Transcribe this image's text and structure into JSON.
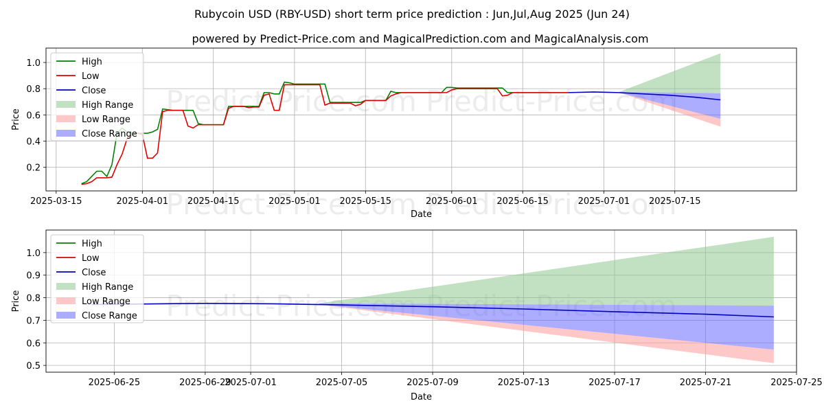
{
  "title": "Rubycoin USD (RBY-USD) short term price prediction : Jun,Jul,Aug 2025 (Jun 24)",
  "subtitle": "powered by Predict-Price.com and MagicalPrediction.com and MagicalAnalysis.com",
  "watermark": "Predict-Price.com",
  "colors": {
    "high": "#008000",
    "low": "#e00000",
    "close": "#0000c0",
    "high_range": "#8fc98f",
    "low_range": "#ff9a9a",
    "close_range": "#6a6aff"
  },
  "legend": {
    "placement": "upper-left",
    "items": [
      {
        "label": "High",
        "kind": "line",
        "color": "#008000"
      },
      {
        "label": "Low",
        "kind": "line",
        "color": "#e00000"
      },
      {
        "label": "Close",
        "kind": "line",
        "color": "#0000c0"
      },
      {
        "label": "High Range",
        "kind": "patch",
        "color": "#8fc98f"
      },
      {
        "label": "Low Range",
        "kind": "patch",
        "color": "#ff9a9a"
      },
      {
        "label": "Close Range",
        "kind": "patch",
        "color": "#6a6aff"
      }
    ]
  },
  "chart_data": [
    {
      "type": "line",
      "xlabel": "Date",
      "ylabel": "Price",
      "grid": true,
      "xlim": [
        "2025-03-13",
        "2025-08-08"
      ],
      "ylim": [
        0.02,
        1.11
      ],
      "yticks": [
        0.2,
        0.4,
        0.6,
        0.8,
        1.0
      ],
      "xticks": [
        "2025-03-15",
        "2025-04-01",
        "2025-04-15",
        "2025-05-01",
        "2025-05-15",
        "2025-06-01",
        "2025-06-15",
        "2025-07-01",
        "2025-07-15"
      ],
      "high": [
        [
          "2025-03-20",
          0.075
        ],
        [
          "2025-03-21",
          0.09
        ],
        [
          "2025-03-22",
          0.13
        ],
        [
          "2025-03-23",
          0.17
        ],
        [
          "2025-03-24",
          0.17
        ],
        [
          "2025-03-25",
          0.13
        ],
        [
          "2025-03-26",
          0.22
        ],
        [
          "2025-03-27",
          0.46
        ],
        [
          "2025-03-28",
          0.5
        ],
        [
          "2025-03-29",
          0.47
        ],
        [
          "2025-03-30",
          0.46
        ],
        [
          "2025-03-31",
          0.46
        ],
        [
          "2025-04-01",
          0.46
        ],
        [
          "2025-04-02",
          0.46
        ],
        [
          "2025-04-03",
          0.47
        ],
        [
          "2025-04-04",
          0.49
        ],
        [
          "2025-04-05",
          0.645
        ],
        [
          "2025-04-06",
          0.64
        ],
        [
          "2025-04-07",
          0.635
        ],
        [
          "2025-04-08",
          0.635
        ],
        [
          "2025-04-09",
          0.635
        ],
        [
          "2025-04-10",
          0.635
        ],
        [
          "2025-04-11",
          0.635
        ],
        [
          "2025-04-12",
          0.535
        ],
        [
          "2025-04-13",
          0.525
        ],
        [
          "2025-04-14",
          0.525
        ],
        [
          "2025-04-15",
          0.525
        ],
        [
          "2025-04-16",
          0.525
        ],
        [
          "2025-04-17",
          0.525
        ],
        [
          "2025-04-18",
          0.665
        ],
        [
          "2025-04-19",
          0.665
        ],
        [
          "2025-04-20",
          0.665
        ],
        [
          "2025-04-21",
          0.665
        ],
        [
          "2025-04-22",
          0.665
        ],
        [
          "2025-04-23",
          0.665
        ],
        [
          "2025-04-24",
          0.665
        ],
        [
          "2025-04-25",
          0.77
        ],
        [
          "2025-04-26",
          0.77
        ],
        [
          "2025-04-27",
          0.76
        ],
        [
          "2025-04-28",
          0.76
        ],
        [
          "2025-04-29",
          0.85
        ],
        [
          "2025-04-30",
          0.845
        ],
        [
          "2025-05-01",
          0.835
        ],
        [
          "2025-05-02",
          0.835
        ],
        [
          "2025-05-03",
          0.835
        ],
        [
          "2025-05-04",
          0.835
        ],
        [
          "2025-05-05",
          0.835
        ],
        [
          "2025-05-06",
          0.835
        ],
        [
          "2025-05-07",
          0.835
        ],
        [
          "2025-05-08",
          0.695
        ],
        [
          "2025-05-09",
          0.695
        ],
        [
          "2025-05-10",
          0.695
        ],
        [
          "2025-05-11",
          0.695
        ],
        [
          "2025-05-12",
          0.695
        ],
        [
          "2025-05-13",
          0.695
        ],
        [
          "2025-05-14",
          0.695
        ],
        [
          "2025-05-15",
          0.71
        ],
        [
          "2025-05-16",
          0.71
        ],
        [
          "2025-05-17",
          0.71
        ],
        [
          "2025-05-18",
          0.71
        ],
        [
          "2025-05-19",
          0.71
        ],
        [
          "2025-05-20",
          0.78
        ],
        [
          "2025-05-21",
          0.77
        ],
        [
          "2025-05-22",
          0.77
        ],
        [
          "2025-05-23",
          0.77
        ],
        [
          "2025-05-24",
          0.77
        ],
        [
          "2025-05-25",
          0.77
        ],
        [
          "2025-05-30",
          0.77
        ],
        [
          "2025-05-31",
          0.81
        ],
        [
          "2025-06-01",
          0.81
        ],
        [
          "2025-06-02",
          0.805
        ],
        [
          "2025-06-10",
          0.805
        ],
        [
          "2025-06-11",
          0.805
        ],
        [
          "2025-06-12",
          0.77
        ],
        [
          "2025-06-13",
          0.77
        ],
        [
          "2025-06-24",
          0.77
        ]
      ],
      "low": [
        [
          "2025-03-20",
          0.07
        ],
        [
          "2025-03-21",
          0.075
        ],
        [
          "2025-03-22",
          0.09
        ],
        [
          "2025-03-23",
          0.12
        ],
        [
          "2025-03-24",
          0.12
        ],
        [
          "2025-03-25",
          0.12
        ],
        [
          "2025-03-26",
          0.125
        ],
        [
          "2025-03-27",
          0.22
        ],
        [
          "2025-03-28",
          0.3
        ],
        [
          "2025-03-29",
          0.42
        ],
        [
          "2025-03-30",
          0.45
        ],
        [
          "2025-03-31",
          0.46
        ],
        [
          "2025-04-01",
          0.45
        ],
        [
          "2025-04-02",
          0.27
        ],
        [
          "2025-04-03",
          0.27
        ],
        [
          "2025-04-04",
          0.31
        ],
        [
          "2025-04-05",
          0.625
        ],
        [
          "2025-04-06",
          0.635
        ],
        [
          "2025-04-07",
          0.635
        ],
        [
          "2025-04-08",
          0.635
        ],
        [
          "2025-04-09",
          0.635
        ],
        [
          "2025-04-10",
          0.515
        ],
        [
          "2025-04-11",
          0.5
        ],
        [
          "2025-04-12",
          0.525
        ],
        [
          "2025-04-13",
          0.525
        ],
        [
          "2025-04-14",
          0.525
        ],
        [
          "2025-04-15",
          0.525
        ],
        [
          "2025-04-16",
          0.525
        ],
        [
          "2025-04-17",
          0.525
        ],
        [
          "2025-04-18",
          0.65
        ],
        [
          "2025-04-19",
          0.665
        ],
        [
          "2025-04-20",
          0.665
        ],
        [
          "2025-04-21",
          0.665
        ],
        [
          "2025-04-22",
          0.655
        ],
        [
          "2025-04-23",
          0.66
        ],
        [
          "2025-04-24",
          0.66
        ],
        [
          "2025-04-25",
          0.75
        ],
        [
          "2025-04-26",
          0.76
        ],
        [
          "2025-04-27",
          0.635
        ],
        [
          "2025-04-28",
          0.635
        ],
        [
          "2025-04-29",
          0.83
        ],
        [
          "2025-04-30",
          0.83
        ],
        [
          "2025-05-01",
          0.83
        ],
        [
          "2025-05-02",
          0.83
        ],
        [
          "2025-05-03",
          0.83
        ],
        [
          "2025-05-04",
          0.83
        ],
        [
          "2025-05-05",
          0.83
        ],
        [
          "2025-05-06",
          0.83
        ],
        [
          "2025-05-07",
          0.675
        ],
        [
          "2025-05-08",
          0.69
        ],
        [
          "2025-05-09",
          0.69
        ],
        [
          "2025-05-10",
          0.69
        ],
        [
          "2025-05-11",
          0.69
        ],
        [
          "2025-05-12",
          0.69
        ],
        [
          "2025-05-13",
          0.67
        ],
        [
          "2025-05-14",
          0.68
        ],
        [
          "2025-05-15",
          0.71
        ],
        [
          "2025-05-16",
          0.71
        ],
        [
          "2025-05-17",
          0.71
        ],
        [
          "2025-05-18",
          0.71
        ],
        [
          "2025-05-19",
          0.71
        ],
        [
          "2025-05-20",
          0.745
        ],
        [
          "2025-05-21",
          0.76
        ],
        [
          "2025-05-22",
          0.77
        ],
        [
          "2025-05-23",
          0.77
        ],
        [
          "2025-05-30",
          0.77
        ],
        [
          "2025-05-31",
          0.77
        ],
        [
          "2025-06-01",
          0.79
        ],
        [
          "2025-06-02",
          0.8
        ],
        [
          "2025-06-10",
          0.8
        ],
        [
          "2025-06-11",
          0.745
        ],
        [
          "2025-06-12",
          0.75
        ],
        [
          "2025-06-13",
          0.77
        ],
        [
          "2025-06-24",
          0.77
        ]
      ],
      "close": [
        [
          "2025-06-24",
          0.77
        ],
        [
          "2025-06-29",
          0.775
        ],
        [
          "2025-07-04",
          0.77
        ],
        [
          "2025-07-09",
          0.76
        ],
        [
          "2025-07-14",
          0.75
        ],
        [
          "2025-07-19",
          0.735
        ],
        [
          "2025-07-24",
          0.715
        ]
      ],
      "high_range": [
        [
          "2025-07-04",
          0.775,
          0.775
        ],
        [
          "2025-07-24",
          0.765,
          1.07
        ]
      ],
      "low_range": [
        [
          "2025-07-04",
          0.77,
          0.77
        ],
        [
          "2025-07-24",
          0.51,
          0.57
        ]
      ],
      "close_range": [
        [
          "2025-07-04",
          0.77,
          0.775
        ],
        [
          "2025-07-24",
          0.57,
          0.765
        ]
      ]
    },
    {
      "type": "line",
      "xlabel": "Date",
      "ylabel": "Price",
      "grid": true,
      "xlim": [
        "2025-06-22",
        "2025-07-25"
      ],
      "ylim": [
        0.47,
        1.1
      ],
      "yticks": [
        0.5,
        0.6,
        0.7,
        0.8,
        0.9,
        1.0
      ],
      "xticks": [
        "2025-06-25",
        "2025-06-29",
        "2025-07-01",
        "2025-07-05",
        "2025-07-09",
        "2025-07-13",
        "2025-07-17",
        "2025-07-21",
        "2025-07-25"
      ],
      "close": [
        [
          "2025-06-24",
          0.77
        ],
        [
          "2025-06-26",
          0.772
        ],
        [
          "2025-06-29",
          0.775
        ],
        [
          "2025-07-02",
          0.773
        ],
        [
          "2025-07-05",
          0.768
        ],
        [
          "2025-07-09",
          0.76
        ],
        [
          "2025-07-13",
          0.75
        ],
        [
          "2025-07-17",
          0.738
        ],
        [
          "2025-07-21",
          0.727
        ],
        [
          "2025-07-24",
          0.715
        ]
      ],
      "high_range": [
        [
          "2025-07-04",
          0.775,
          0.775
        ],
        [
          "2025-07-24",
          0.765,
          1.07
        ]
      ],
      "low_range": [
        [
          "2025-07-04",
          0.77,
          0.77
        ],
        [
          "2025-07-24",
          0.51,
          0.57
        ]
      ],
      "close_range": [
        [
          "2025-07-04",
          0.77,
          0.775
        ],
        [
          "2025-07-24",
          0.57,
          0.765
        ]
      ]
    }
  ]
}
